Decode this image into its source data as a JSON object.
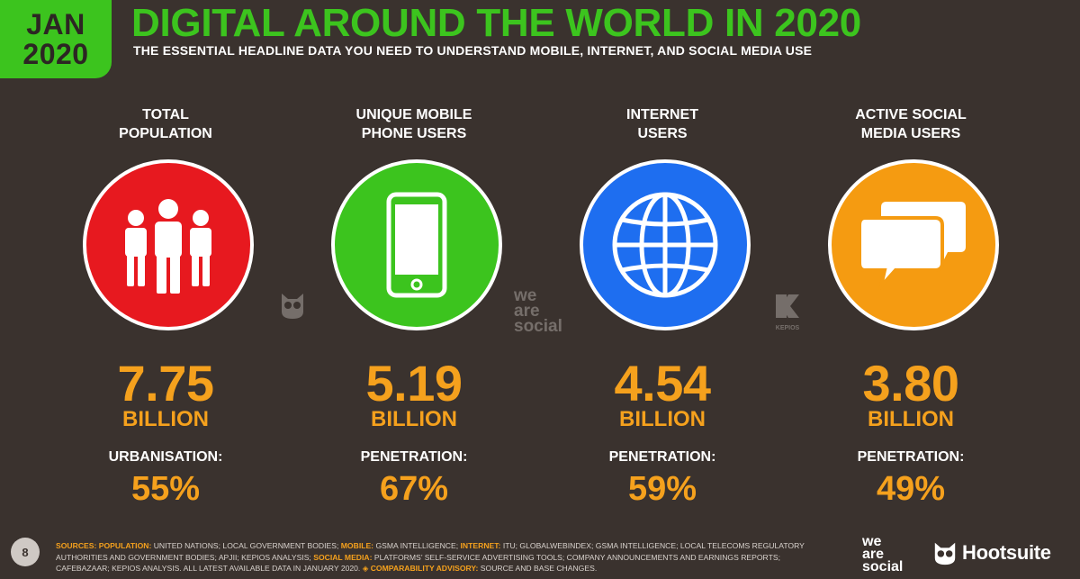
{
  "badge": {
    "month": "JAN",
    "year": "2020"
  },
  "title": "DIGITAL AROUND THE WORLD IN 2020",
  "subtitle": "THE ESSENTIAL HEADLINE DATA YOU NEED TO UNDERSTAND MOBILE, INTERNET, AND SOCIAL MEDIA USE",
  "stats": [
    {
      "label": "TOTAL\nPOPULATION",
      "value": "7.75",
      "unit": "BILLION",
      "metric_label": "URBANISATION:",
      "metric_value": "55%",
      "color": "#e7191f",
      "icon": "people-icon"
    },
    {
      "label": "UNIQUE MOBILE\nPHONE USERS",
      "value": "5.19",
      "unit": "BILLION",
      "metric_label": "PENETRATION:",
      "metric_value": "67%",
      "color": "#3cc41e",
      "icon": "mobile-phone-icon"
    },
    {
      "label": "INTERNET\nUSERS",
      "value": "4.54",
      "unit": "BILLION",
      "metric_label": "PENETRATION:",
      "metric_value": "59%",
      "color": "#1e6ef0",
      "icon": "globe-icon"
    },
    {
      "label": "ACTIVE SOCIAL\nMEDIA USERS",
      "value": "3.80",
      "unit": "BILLION",
      "metric_label": "PENETRATION:",
      "metric_value": "49%",
      "color": "#f59b11",
      "icon": "chat-bubbles-icon"
    }
  ],
  "watermarks": {
    "we_are_social": "we\nare\nsocial",
    "kepios": "KEPIOS"
  },
  "footer": {
    "page_number": "8",
    "sources_label": "SOURCES:",
    "population_label": "POPULATION:",
    "population_text": "UNITED NATIONS; LOCAL GOVERNMENT BODIES;",
    "mobile_label": "MOBILE:",
    "mobile_text": "GSMA INTELLIGENCE;",
    "internet_label": "INTERNET:",
    "internet_text": "ITU; GLOBALWEBINDEX; GSMA INTELLIGENCE; LOCAL TELECOMS REGULATORY AUTHORITIES AND GOVERNMENT BODIES; APJII; KEPIOS ANALYSIS;",
    "social_label": "SOCIAL MEDIA:",
    "social_text": "PLATFORMS’ SELF-SERVICE ADVERTISING TOOLS; COMPANY ANNOUNCEMENTS AND EARNINGS REPORTS; CAFEBAZAAR; KEPIOS ANALYSIS. ALL LATEST AVAILABLE DATA IN JANUARY 2020.",
    "advisory_label": "◈ COMPARABILITY ADVISORY:",
    "advisory_text": "SOURCE AND BASE CHANGES."
  },
  "logos": {
    "we_are_social": "we\nare\nsocial",
    "hootsuite": "Hootsuite"
  },
  "colors": {
    "accent_green": "#3cc41e",
    "accent_orange": "#f5a11d",
    "background": "#3a322e"
  }
}
